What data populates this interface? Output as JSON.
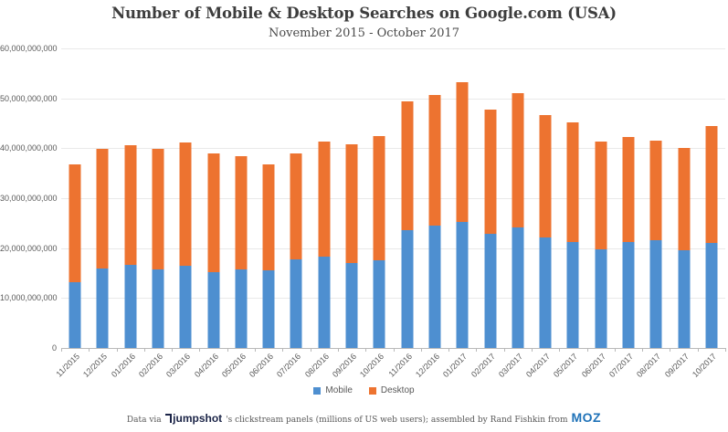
{
  "chart_data": {
    "type": "bar",
    "stacked": true,
    "title": "Number of Mobile & Desktop Searches on Google.com (USA)",
    "subtitle": "November 2015 - October 2017",
    "xlabel": "",
    "ylabel": "",
    "grid": true,
    "legend_position": "bottom",
    "ylim": [
      0,
      60000000000
    ],
    "ytick_interval": 10000000000,
    "ytick_labels": [
      "0",
      "10,000,000,000",
      "20,000,000,000",
      "30,000,000,000",
      "40,000,000,000",
      "50,000,000,000",
      "60,000,000,000"
    ],
    "categories": [
      "11/2015",
      "12/2015",
      "01/2016",
      "02/2016",
      "03/2016",
      "04/2016",
      "05/2016",
      "06/2016",
      "07/2016",
      "08/2016",
      "09/2016",
      "10/2016",
      "11/2016",
      "12/2016",
      "01/2017",
      "02/2017",
      "03/2017",
      "04/2017",
      "05/2017",
      "06/2017",
      "07/2017",
      "08/2017",
      "09/2017",
      "10/2017"
    ],
    "series": [
      {
        "name": "Mobile",
        "color": "#4e8fd0",
        "values": [
          13200000000,
          15900000000,
          16600000000,
          15800000000,
          16400000000,
          15200000000,
          15800000000,
          15500000000,
          17800000000,
          18300000000,
          17000000000,
          17600000000,
          23600000000,
          24600000000,
          25200000000,
          22800000000,
          24100000000,
          22200000000,
          21200000000,
          19800000000,
          21200000000,
          21500000000,
          19600000000,
          21000000000
        ]
      },
      {
        "name": "Desktop",
        "color": "#ed7330",
        "values": [
          23600000000,
          23900000000,
          24100000000,
          24100000000,
          24800000000,
          23700000000,
          22600000000,
          21300000000,
          21100000000,
          23000000000,
          23800000000,
          24900000000,
          25800000000,
          26000000000,
          28000000000,
          25000000000,
          26900000000,
          24400000000,
          24000000000,
          21600000000,
          21100000000,
          20100000000,
          20400000000,
          23500000000
        ]
      }
    ]
  },
  "footer": {
    "prefix": "Data via",
    "jumpshot": "jumpshot",
    "middle": "'s clickstream panels (millions of US web users); assembled by Rand Fishkin from",
    "moz": "MOZ"
  }
}
